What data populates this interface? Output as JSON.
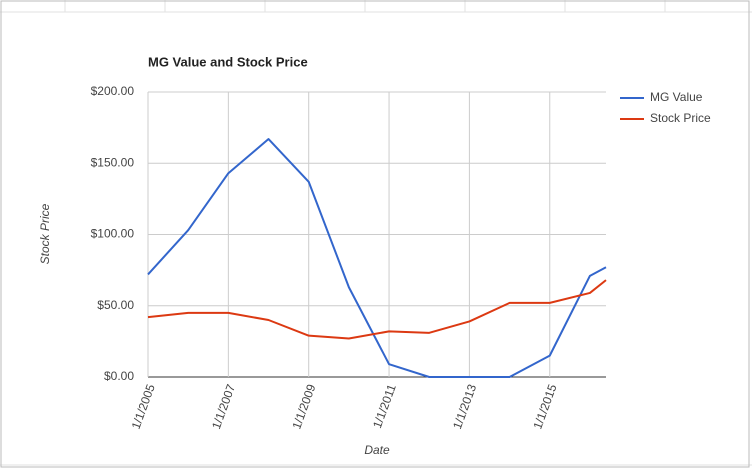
{
  "chart_data": {
    "type": "line",
    "title": "MG Value and Stock Price",
    "x_label": "Date",
    "y_label": "Stock Price",
    "x": [
      2005,
      2006,
      2007,
      2008,
      2009,
      2010,
      2011,
      2012,
      2013,
      2014,
      2015,
      2016,
      2016.4
    ],
    "series": [
      {
        "name": "MG Value",
        "color": "#3366cc",
        "values": [
          72,
          103,
          143,
          167,
          137,
          63,
          9,
          0,
          0,
          0,
          15,
          71,
          77
        ]
      },
      {
        "name": "Stock Price",
        "color": "#dc3912",
        "values": [
          42,
          45,
          45,
          40,
          29,
          27,
          32,
          31,
          39,
          52,
          52,
          59,
          68
        ]
      }
    ],
    "xlim": [
      2005,
      2016.4
    ],
    "xticks": [
      {
        "value": 2005,
        "label": "1/1/2005"
      },
      {
        "value": 2007,
        "label": "1/1/2007"
      },
      {
        "value": 2009,
        "label": "1/1/2009"
      },
      {
        "value": 2011,
        "label": "1/1/2011"
      },
      {
        "value": 2013,
        "label": "1/1/2013"
      },
      {
        "value": 2015,
        "label": "1/1/2015"
      }
    ],
    "ylim": [
      0,
      200
    ],
    "yticks": [
      {
        "value": 0,
        "label": "$0.00"
      },
      {
        "value": 50,
        "label": "$50.00"
      },
      {
        "value": 100,
        "label": "$100.00"
      },
      {
        "value": 150,
        "label": "$150.00"
      },
      {
        "value": 200,
        "label": "$200.00"
      }
    ],
    "grid": true,
    "legend": "right"
  }
}
